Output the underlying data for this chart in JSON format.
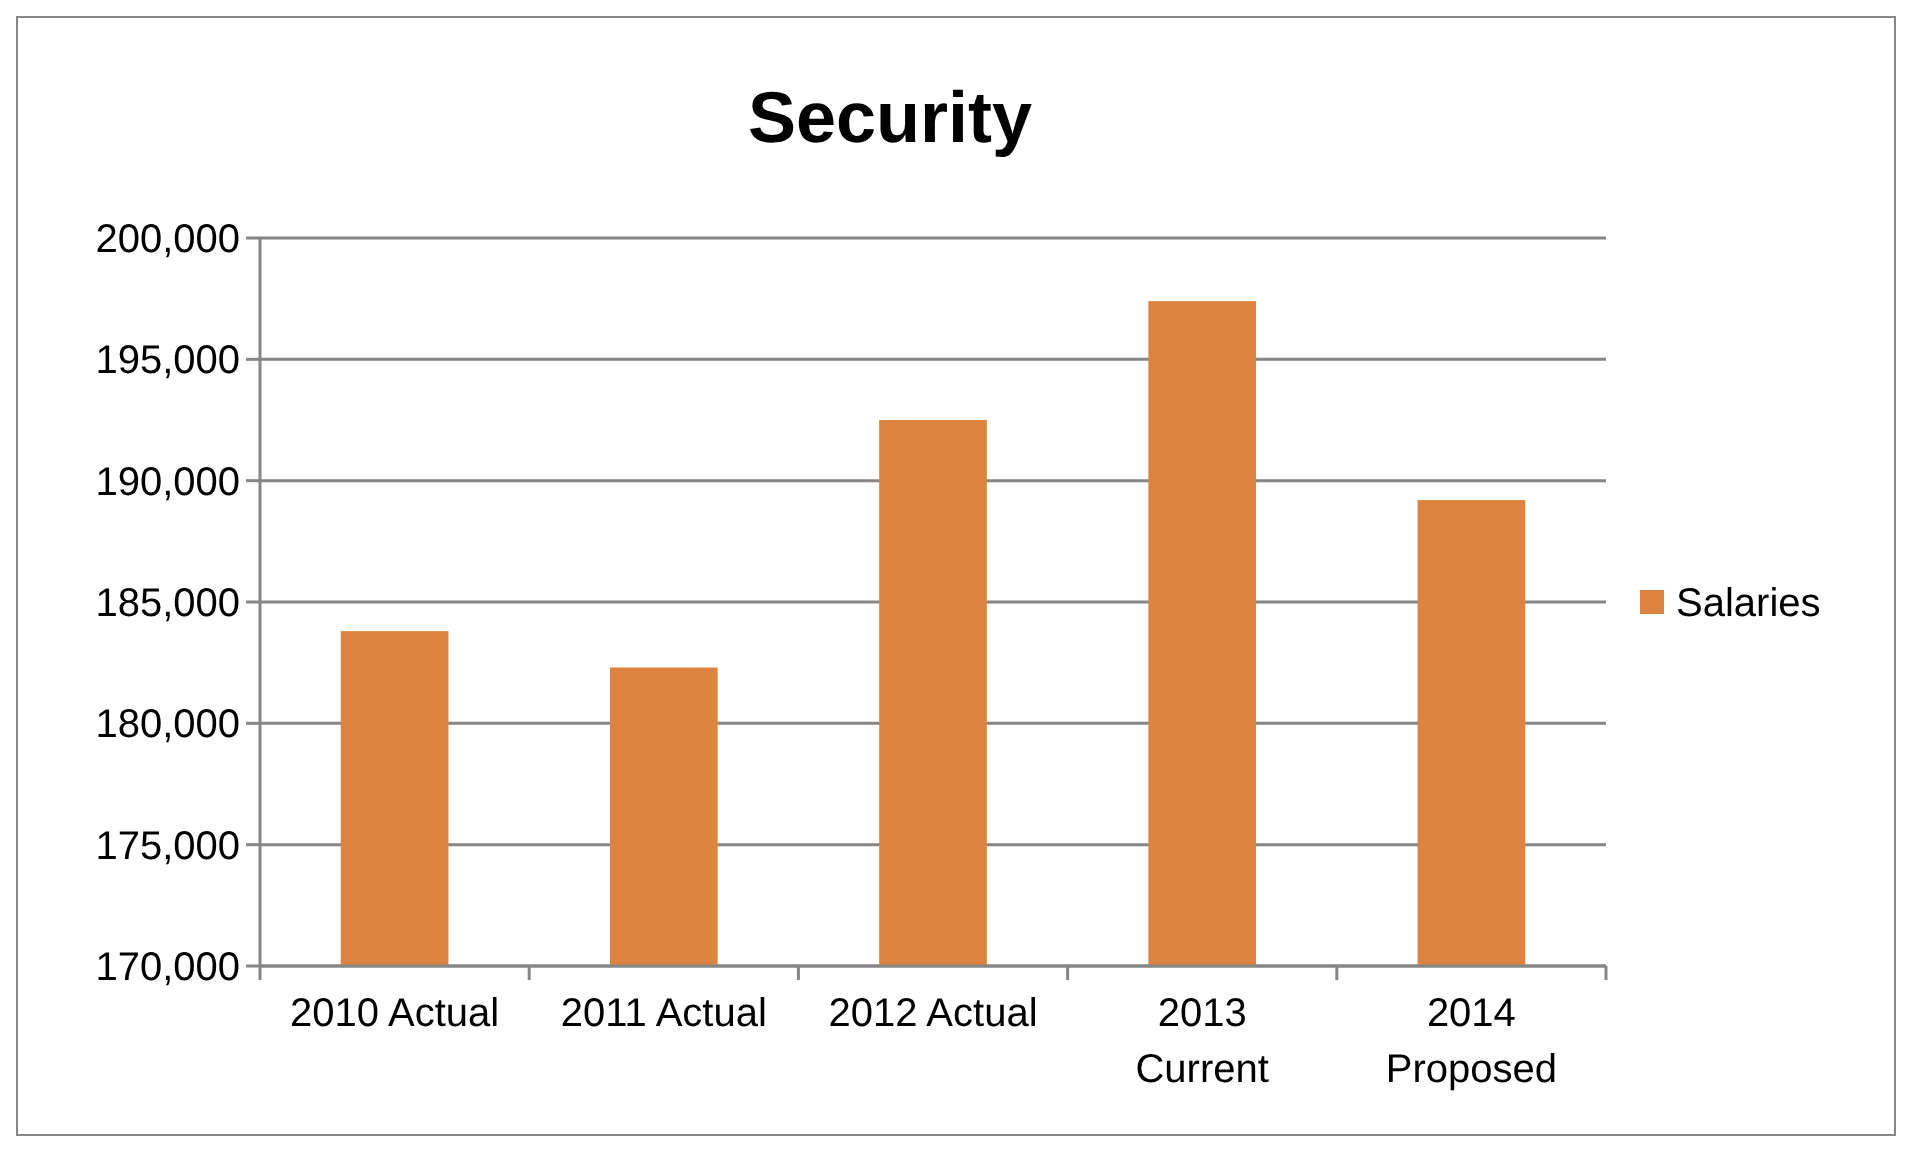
{
  "chart_data": {
    "type": "bar",
    "title": "Security",
    "categories": [
      "2010 Actual",
      "2011 Actual",
      "2012 Actual",
      "2013 Current",
      "2014 Proposed"
    ],
    "series": [
      {
        "name": "Salaries",
        "color": "#dc843f",
        "values": [
          183800,
          182300,
          192500,
          197400,
          189200
        ]
      }
    ],
    "ylim": [
      170000,
      200000
    ],
    "yticks": [
      {
        "value": 170000,
        "label": "170,000"
      },
      {
        "value": 175000,
        "label": "175,000"
      },
      {
        "value": 180000,
        "label": "180,000"
      },
      {
        "value": 185000,
        "label": "185,000"
      },
      {
        "value": 190000,
        "label": "190,000"
      },
      {
        "value": 195000,
        "label": "195,000"
      },
      {
        "value": 200000,
        "label": "200,000"
      }
    ],
    "grid": "y",
    "legend": "right"
  }
}
